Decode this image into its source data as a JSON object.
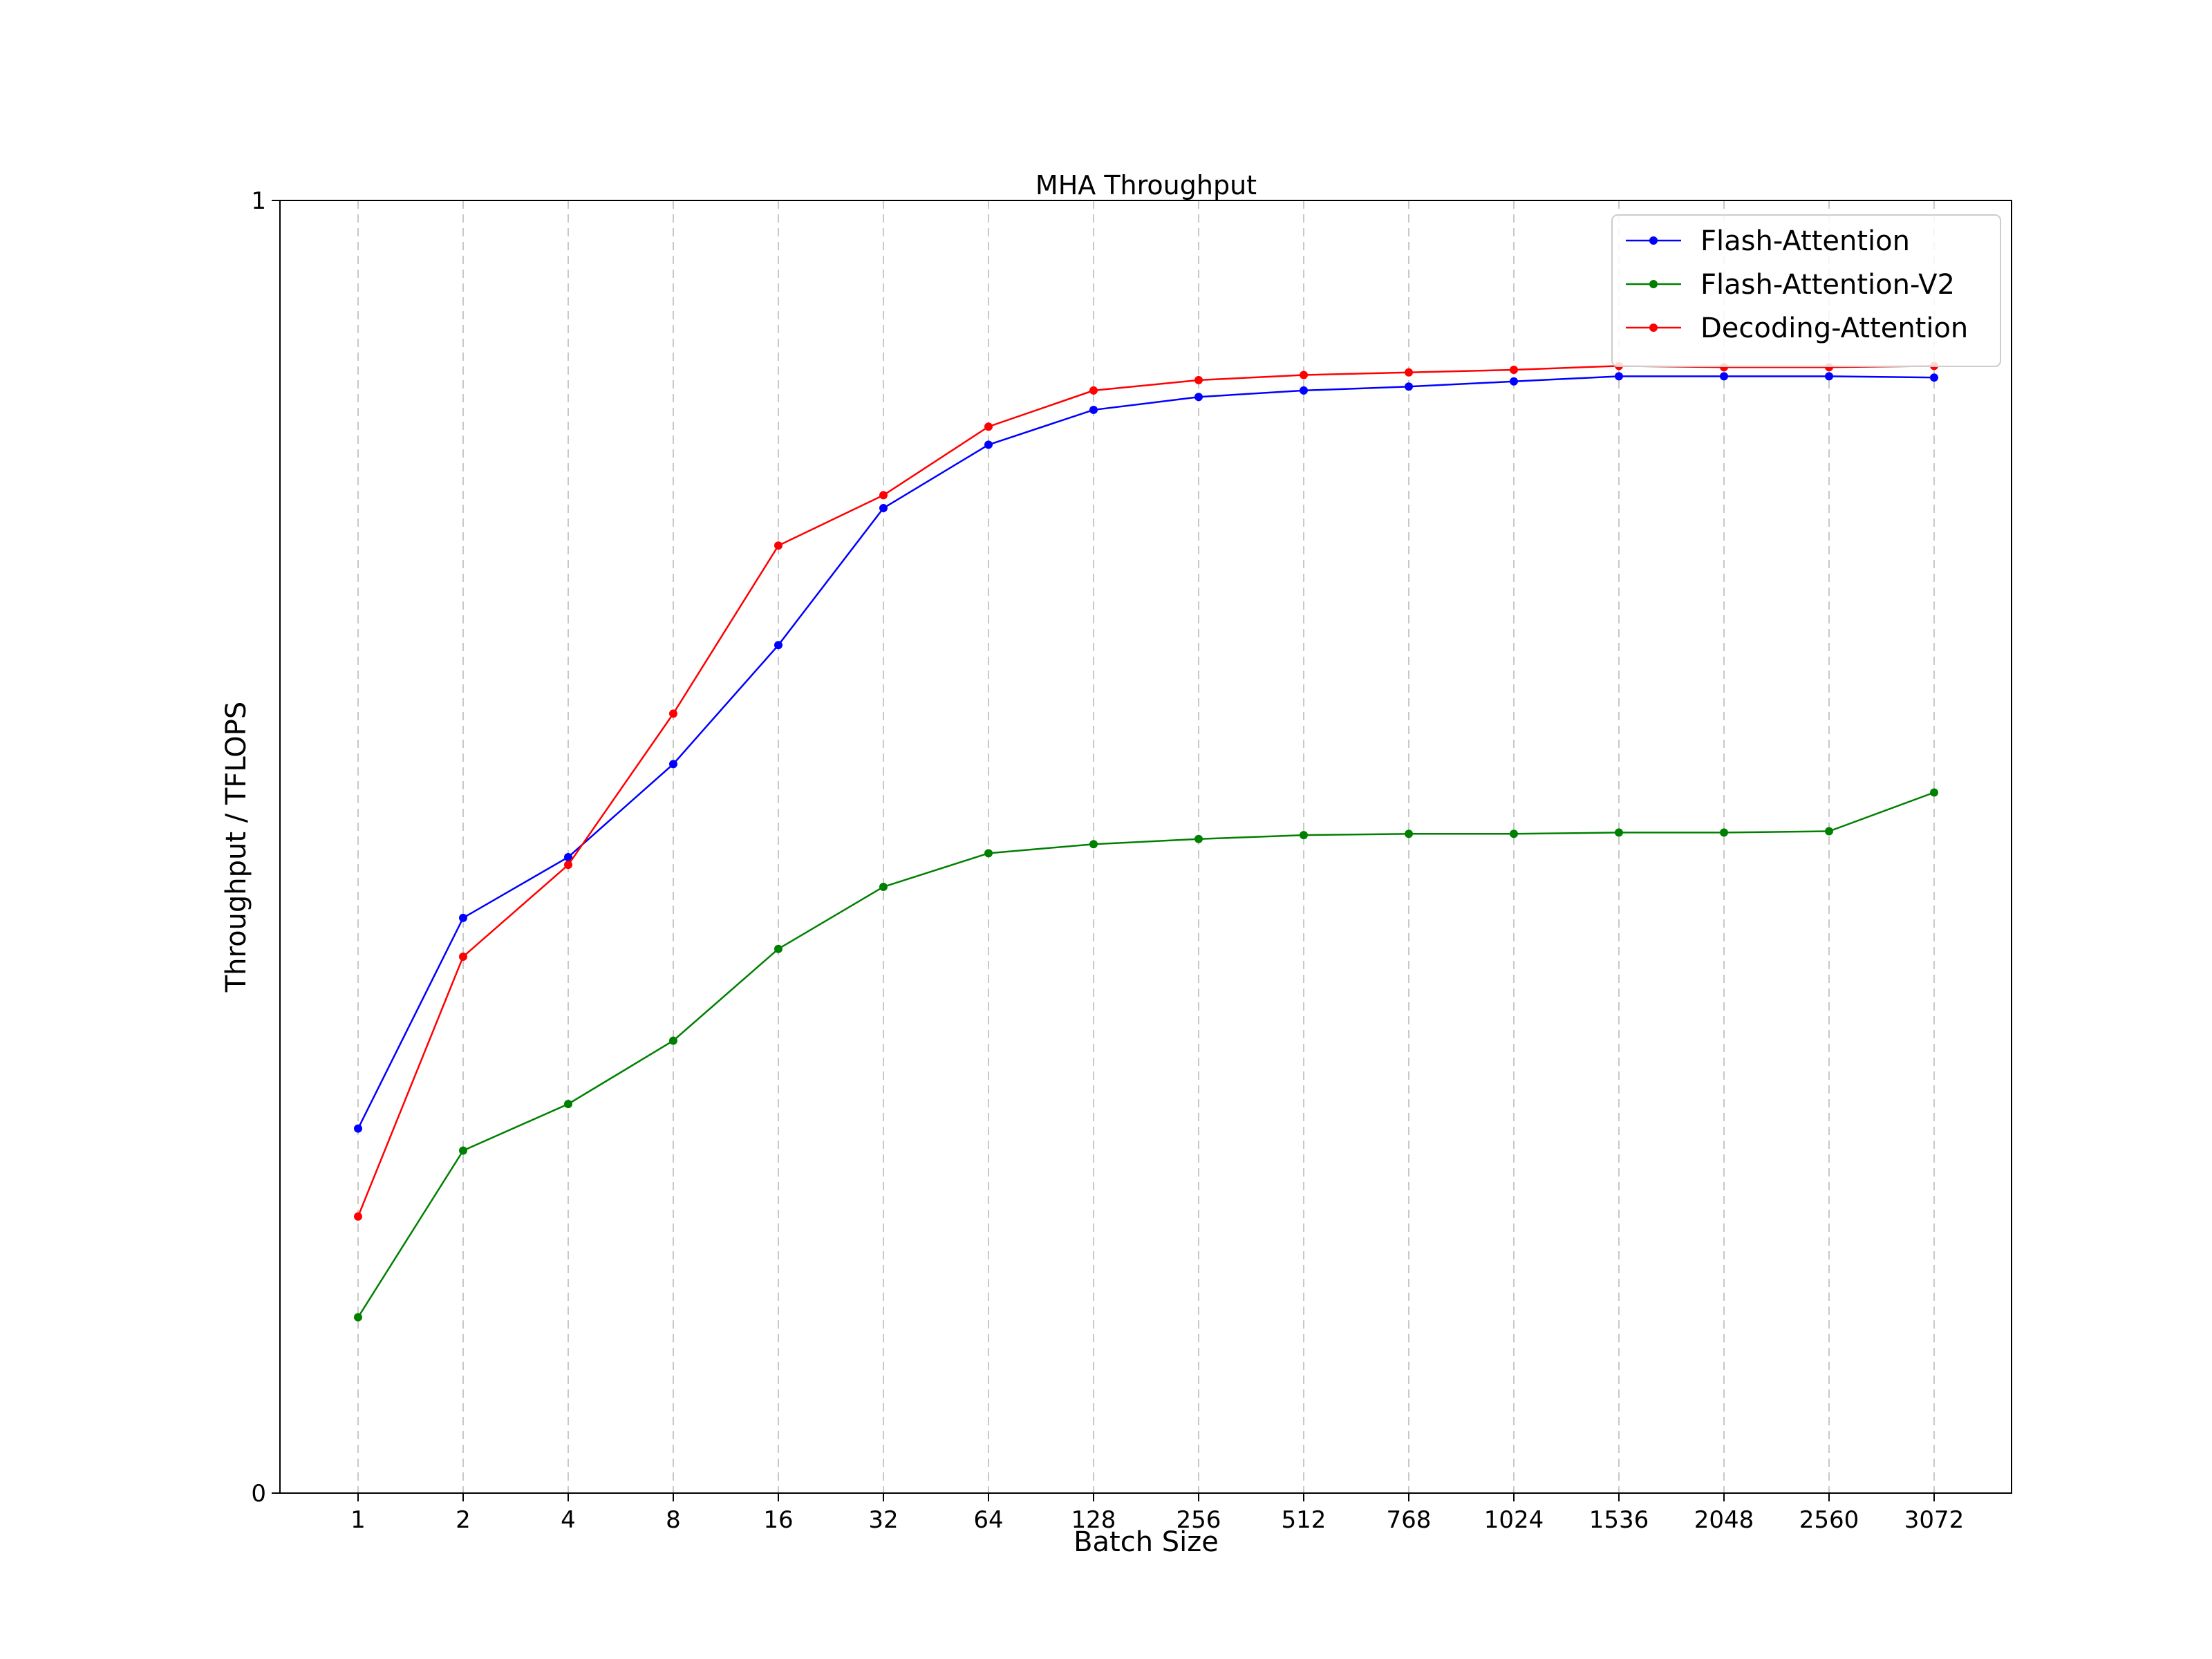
{
  "chart_data": {
    "type": "line",
    "title": "MHA Throughput",
    "xlabel": "Batch Size",
    "ylabel": "Throughput / TFLOPS",
    "categories": [
      "1",
      "2",
      "4",
      "8",
      "16",
      "32",
      "64",
      "128",
      "256",
      "512",
      "768",
      "1024",
      "1536",
      "2048",
      "2560",
      "3072"
    ],
    "ylim": [
      0,
      1
    ],
    "yticks": [
      "0",
      "1"
    ],
    "grid": "vertical dashed",
    "legend": "top-right",
    "series": [
      {
        "name": "Flash-Attention",
        "color": "#0000ff",
        "values": [
          0.282,
          0.445,
          0.492,
          0.564,
          0.656,
          0.762,
          0.811,
          0.838,
          0.848,
          0.853,
          0.856,
          0.86,
          0.864,
          0.864,
          0.864,
          0.863
        ]
      },
      {
        "name": "Flash-Attention-V2",
        "color": "#008000",
        "values": [
          0.136,
          0.265,
          0.301,
          0.35,
          0.421,
          0.469,
          0.495,
          0.502,
          0.506,
          0.509,
          0.51,
          0.51,
          0.511,
          0.511,
          0.512,
          0.542
        ]
      },
      {
        "name": "Decoding-Attention",
        "color": "#ff0000",
        "values": [
          0.214,
          0.415,
          0.486,
          0.603,
          0.733,
          0.772,
          0.825,
          0.853,
          0.861,
          0.865,
          0.867,
          0.869,
          0.872,
          0.871,
          0.871,
          0.872
        ]
      }
    ]
  }
}
